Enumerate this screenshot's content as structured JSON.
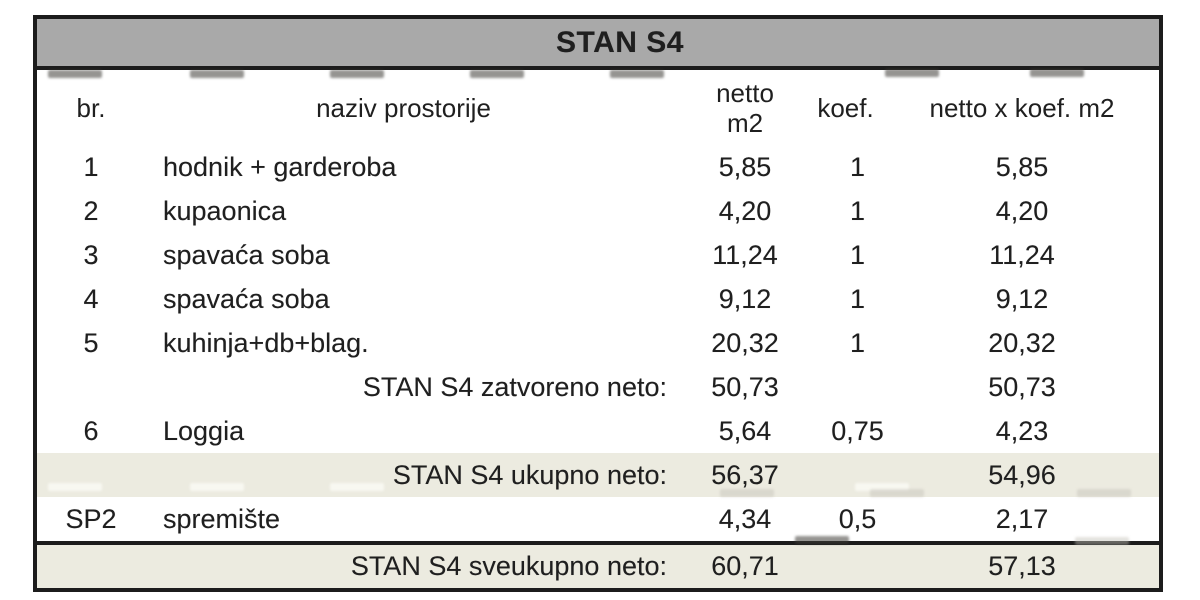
{
  "document": {
    "title": "STAN S4"
  },
  "table": {
    "columns": {
      "br": "br.",
      "naziv": "naziv prostorije",
      "netto_line1": "netto",
      "netto_line2": "m2",
      "koef": "koef.",
      "result": "netto x koef. m2"
    },
    "rows": [
      {
        "type": "data",
        "br": "1",
        "naziv": "hodnik + garderoba",
        "netto": "5,85",
        "koef": "1",
        "result": "5,85",
        "highlight": false
      },
      {
        "type": "data",
        "br": "2",
        "naziv": "kupaonica",
        "netto": "4,20",
        "koef": "1",
        "result": "4,20",
        "highlight": false
      },
      {
        "type": "data",
        "br": "3",
        "naziv": "spavaća soba",
        "netto": "11,24",
        "koef": "1",
        "result": "11,24",
        "highlight": false
      },
      {
        "type": "data",
        "br": "4",
        "naziv": "spavaća soba",
        "netto": "9,12",
        "koef": "1",
        "result": "9,12",
        "highlight": false
      },
      {
        "type": "data",
        "br": "5",
        "naziv": "kuhinja+db+blag.",
        "netto": "20,32",
        "koef": "1",
        "result": "20,32",
        "highlight": false
      },
      {
        "type": "subtotal",
        "label": "STAN S4 zatvoreno neto:",
        "netto": "50,73",
        "koef": "",
        "result": "50,73",
        "highlight": false
      },
      {
        "type": "data",
        "br": "6",
        "naziv": "Loggia",
        "netto": "5,64",
        "koef": "0,75",
        "result": "4,23",
        "highlight": false
      },
      {
        "type": "subtotal",
        "label": "STAN S4 ukupno neto:",
        "netto": "56,37",
        "koef": "",
        "result": "54,96",
        "highlight": true
      },
      {
        "type": "data",
        "br": "SP2",
        "naziv": "spremište",
        "netto": "4,34",
        "koef": "0,5",
        "result": "2,17",
        "highlight": false
      },
      {
        "type": "total",
        "label": "STAN S4 sveukupno neto:",
        "netto": "60,71",
        "koef": "",
        "result": "57,13",
        "highlight": true
      }
    ]
  },
  "colors": {
    "title_bg": "#a9a9a9",
    "highlight_bg": "#ecebe0",
    "border": "#1c1c1c",
    "text": "#1f1f1f"
  }
}
